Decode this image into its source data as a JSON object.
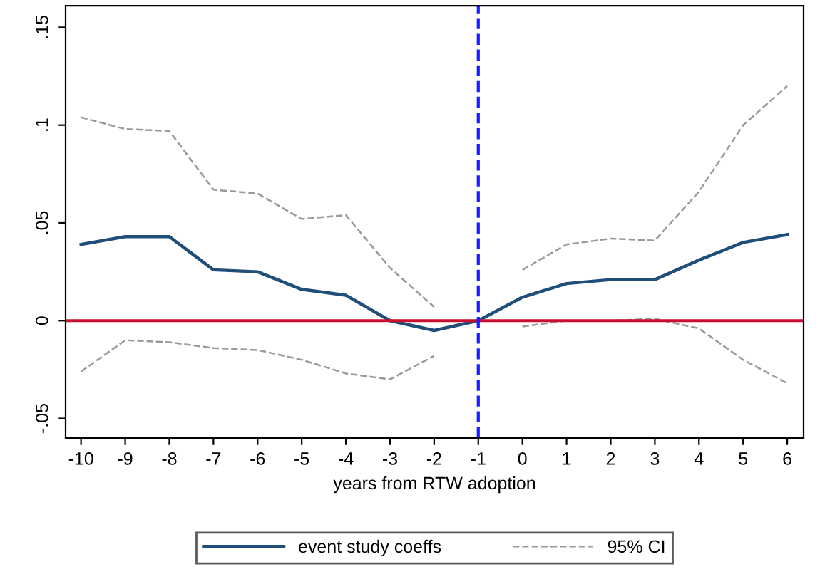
{
  "chart_data": {
    "type": "line",
    "xlabel": "years from RTW adoption",
    "x": [
      -10,
      -9,
      -8,
      -7,
      -6,
      -5,
      -4,
      -3,
      -2,
      -1,
      0,
      1,
      2,
      3,
      4,
      5,
      6
    ],
    "series": [
      {
        "name": "event study coeffs",
        "color": "#1f4e79",
        "line_style": "solid",
        "values": [
          0.039,
          0.043,
          0.043,
          0.026,
          0.025,
          0.016,
          0.013,
          0.0,
          -0.005,
          0.0,
          0.012,
          0.019,
          0.021,
          0.021,
          0.031,
          0.04,
          0.044
        ]
      },
      {
        "name": "95% CI",
        "color": "#999999",
        "line_style": "dashed",
        "values": [
          0.104,
          0.098,
          0.097,
          0.067,
          0.065,
          0.052,
          0.054,
          0.027,
          0.007,
          null,
          0.026,
          0.039,
          0.042,
          0.041,
          0.066,
          0.1,
          0.12
        ]
      },
      {
        "color": "#999999",
        "line_style": "dashed",
        "values": [
          -0.026,
          -0.01,
          -0.011,
          -0.014,
          -0.015,
          -0.02,
          -0.027,
          -0.03,
          -0.018,
          null,
          -0.003,
          0.0,
          0.0,
          0.001,
          -0.004,
          -0.02,
          -0.032
        ]
      }
    ],
    "xlim": [
      -10.35,
      6.37
    ],
    "ylim": [
      -0.06,
      0.161
    ],
    "xticks": [
      -10,
      -9,
      -8,
      -7,
      -6,
      -5,
      -4,
      -3,
      -2,
      -1,
      0,
      1,
      2,
      3,
      4,
      5,
      6
    ],
    "yticks": [
      {
        "value": -0.05,
        "label": "-.05"
      },
      0,
      {
        "value": 0.05,
        "label": ".05"
      },
      {
        "value": 0.1,
        "label": ".1"
      },
      {
        "value": 0.15,
        "label": ".15"
      }
    ],
    "ref_lines": [
      {
        "axis": "y",
        "value": 0,
        "color": "#c8102e",
        "line_style": "solid"
      },
      {
        "axis": "x",
        "value": -1,
        "color": "#1a1aff",
        "line_style": "dashed"
      }
    ],
    "grid": false,
    "legend": "bottom",
    "marker": "none"
  }
}
